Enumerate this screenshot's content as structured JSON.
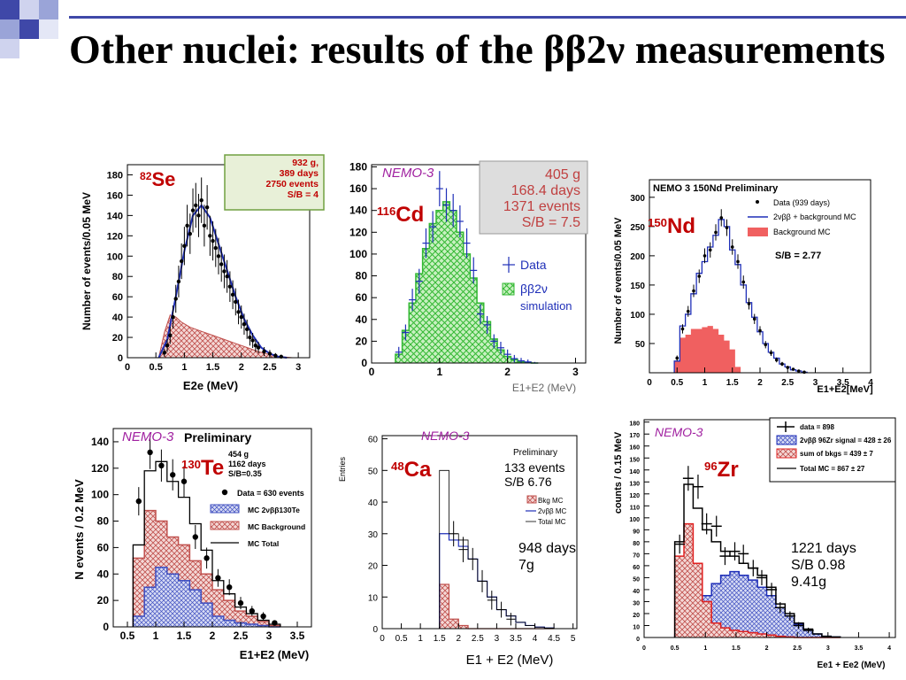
{
  "slide": {
    "title": "Other nuclei: results of the ββ2ν measurements"
  },
  "colors": {
    "accent_blue": "#3f48a8",
    "accent_light": "#9aa4d8",
    "data": "#000000",
    "signal": "#1f2fb8",
    "background_fill": "#c0504d",
    "nd_bkg": "#f06060",
    "green_mesh": "#33b833"
  },
  "chart_data": [
    {
      "id": "se82",
      "type": "line",
      "nucleus_sup": "82",
      "nucleus": "Se",
      "info": [
        "932 g,",
        "389 days",
        "2750 events",
        "S/B = 4"
      ],
      "xlabel": "E2e (MeV)",
      "ylabel": "Number of events/0.05 MeV",
      "xlim": [
        0,
        3.2
      ],
      "ylim": [
        0,
        190
      ],
      "xticks": [
        "0",
        "0.5",
        "1",
        "1.5",
        "2",
        "2.5",
        "3"
      ],
      "yticks": [
        "0",
        "20",
        "40",
        "60",
        "80",
        "100",
        "120",
        "140",
        "160",
        "180"
      ],
      "series": [
        {
          "name": "data",
          "x": [
            0.65,
            0.7,
            0.75,
            0.8,
            0.85,
            0.9,
            0.95,
            1.0,
            1.05,
            1.1,
            1.15,
            1.2,
            1.25,
            1.3,
            1.35,
            1.4,
            1.45,
            1.5,
            1.55,
            1.6,
            1.65,
            1.7,
            1.75,
            1.8,
            1.85,
            1.9,
            1.95,
            2.0,
            2.05,
            2.1,
            2.15,
            2.2,
            2.25,
            2.3,
            2.4,
            2.5,
            2.6,
            2.7
          ],
          "y": [
            5,
            12,
            22,
            40,
            58,
            75,
            95,
            110,
            130,
            122,
            145,
            150,
            140,
            155,
            130,
            148,
            120,
            115,
            108,
            100,
            92,
            85,
            80,
            70,
            62,
            55,
            45,
            40,
            33,
            28,
            20,
            17,
            12,
            10,
            6,
            4,
            2,
            1
          ]
        },
        {
          "name": "MC",
          "x": [
            0.55,
            0.7,
            0.85,
            1.0,
            1.15,
            1.3,
            1.45,
            1.6,
            1.75,
            1.9,
            2.05,
            2.2,
            2.35,
            2.5,
            2.65,
            2.8
          ],
          "y": [
            0,
            18,
            60,
            105,
            140,
            150,
            138,
            112,
            86,
            60,
            38,
            22,
            10,
            4,
            1,
            0
          ]
        },
        {
          "name": "background",
          "x": [
            0.55,
            0.65,
            0.75,
            0.85,
            0.95,
            1.1,
            1.3,
            1.5,
            1.7,
            1.9,
            2.1,
            2.3,
            2.5,
            2.7,
            2.9
          ],
          "y": [
            0,
            25,
            42,
            40,
            35,
            30,
            26,
            22,
            18,
            14,
            10,
            6,
            3,
            1,
            0
          ]
        }
      ]
    },
    {
      "id": "cd116",
      "type": "bar",
      "label": "NEMO-3",
      "nucleus_sup": "116",
      "nucleus": "Cd",
      "info": [
        "405 g",
        "168.4 days",
        "1371  events",
        "S/B = 7.5"
      ],
      "legend": [
        "Data",
        "ββ2ν",
        "simulation"
      ],
      "xlabel": "E1+E2 (MeV)",
      "xlim": [
        0,
        3.15
      ],
      "ylim": [
        0,
        182
      ],
      "xticks": [
        "0",
        "1",
        "2",
        "3"
      ],
      "yticks": [
        "0",
        "20",
        "40",
        "60",
        "80",
        "100",
        "120",
        "140",
        "160",
        "180"
      ],
      "bins_x": [
        0.4,
        0.5,
        0.6,
        0.7,
        0.8,
        0.9,
        1.0,
        1.1,
        1.2,
        1.3,
        1.4,
        1.5,
        1.6,
        1.7,
        1.8,
        1.9,
        2.0,
        2.1,
        2.2,
        2.3,
        2.4
      ],
      "simulation": [
        8,
        30,
        55,
        82,
        105,
        128,
        140,
        148,
        140,
        120,
        100,
        78,
        55,
        38,
        22,
        12,
        6,
        3,
        1,
        0.5,
        0
      ],
      "data": [
        10,
        28,
        58,
        75,
        110,
        125,
        160,
        145,
        140,
        130,
        110,
        85,
        45,
        35,
        20,
        14,
        8,
        4,
        2,
        1,
        0
      ]
    },
    {
      "id": "nd150",
      "type": "bar",
      "header": "NEMO 3 150Nd  Preliminary",
      "nucleus_sup": "150",
      "nucleus": "Nd",
      "legend": [
        "Data (939 days)",
        "2νββ + background MC",
        "Background MC"
      ],
      "sb": "S/B =  2.77",
      "xlabel": "E1+E2[MeV]",
      "ylabel": "Number of events/0.05 MeV",
      "xlim": [
        0,
        4
      ],
      "ylim": [
        0,
        330
      ],
      "xticks": [
        "0",
        "0.5",
        "1",
        "1.5",
        "2",
        "2.5",
        "3",
        "3.5",
        "4"
      ],
      "yticks": [
        "50",
        "100",
        "150",
        "200",
        "250",
        "300"
      ],
      "bins_x": [
        0.5,
        0.6,
        0.7,
        0.8,
        0.9,
        1.0,
        1.1,
        1.2,
        1.3,
        1.4,
        1.5,
        1.6,
        1.7,
        1.8,
        1.9,
        2.0,
        2.1,
        2.2,
        2.3,
        2.4,
        2.5,
        2.6,
        2.7,
        2.8
      ],
      "total": [
        20,
        80,
        100,
        135,
        170,
        190,
        215,
        235,
        262,
        250,
        210,
        185,
        150,
        120,
        95,
        70,
        50,
        35,
        25,
        15,
        10,
        5,
        3,
        1
      ],
      "background": [
        20,
        60,
        65,
        75,
        75,
        78,
        80,
        75,
        65,
        55,
        40,
        10,
        0,
        0,
        0,
        0,
        0,
        0,
        0,
        0,
        0,
        0,
        0,
        0
      ],
      "data": [
        25,
        75,
        105,
        140,
        165,
        200,
        210,
        240,
        265,
        248,
        215,
        190,
        155,
        118,
        92,
        72,
        48,
        34,
        22,
        15,
        9,
        6,
        3,
        1
      ]
    },
    {
      "id": "te130",
      "type": "bar",
      "label": "NEMO-3",
      "header": "Preliminary",
      "nucleus_sup": "130",
      "nucleus": "Te",
      "info": [
        "454 g",
        "1162 days",
        "S/B=0.35"
      ],
      "legend": [
        "Data = 630 events",
        "MC 2νββ130Te",
        "MC Background",
        "MC Total"
      ],
      "xlabel": "E1+E2 (MeV)",
      "ylabel": "N events / 0.2 MeV",
      "xlim": [
        0.25,
        3.75
      ],
      "ylim": [
        0,
        150
      ],
      "xticks": [
        "0.5",
        "1",
        "1.5",
        "2",
        "2.5",
        "3",
        "3.5"
      ],
      "yticks": [
        "0",
        "20",
        "40",
        "60",
        "80",
        "100",
        "120",
        "140"
      ],
      "bins_edges": [
        0.6,
        0.8,
        1.0,
        1.2,
        1.4,
        1.6,
        1.8,
        2.0,
        2.2,
        2.4,
        2.6,
        2.8,
        3.0,
        3.2
      ],
      "total": [
        62,
        118,
        125,
        110,
        98,
        78,
        58,
        35,
        25,
        15,
        10,
        5,
        2
      ],
      "background": [
        52,
        88,
        80,
        68,
        62,
        50,
        40,
        28,
        20,
        12,
        8,
        4,
        1
      ],
      "signal": [
        8,
        30,
        45,
        40,
        35,
        28,
        18,
        8,
        5,
        3,
        2,
        1,
        0
      ],
      "data_x": [
        0.7,
        0.9,
        1.1,
        1.3,
        1.5,
        1.7,
        1.9,
        2.1,
        2.3,
        2.5,
        2.7,
        2.9,
        3.1
      ],
      "data": [
        95,
        132,
        122,
        115,
        110,
        68,
        52,
        37,
        30,
        18,
        12,
        8,
        3
      ]
    },
    {
      "id": "ca48",
      "type": "bar",
      "label": "NEMO-3",
      "header": "Preliminary",
      "nucleus_sup": "48",
      "nucleus": "Ca",
      "info": [
        "133 events",
        "S/B 6.76"
      ],
      "info2": [
        "948 days",
        "7g"
      ],
      "legend": [
        "Bkg MC",
        "2νββ MC",
        "Total MC"
      ],
      "xlabel": "E1 + E2 (MeV)",
      "ylabel": "Entries",
      "xlim": [
        0,
        5.1
      ],
      "ylim": [
        0,
        61
      ],
      "xticks": [
        "0",
        "0.5",
        "1",
        "1.5",
        "2",
        "2.5",
        "3",
        "3.5",
        "4",
        "4.5",
        "5"
      ],
      "yticks": [
        "0",
        "10",
        "20",
        "30",
        "40",
        "50",
        "60"
      ],
      "bins_edges": [
        1.5,
        1.75,
        2.0,
        2.25,
        2.5,
        2.75,
        3.0,
        3.25,
        3.5,
        3.75,
        4.0,
        4.25,
        4.5
      ],
      "total": [
        50,
        30,
        28,
        22,
        15,
        10,
        6,
        4,
        2,
        1,
        0.5,
        0.2
      ],
      "signal": [
        30,
        28,
        26,
        22,
        15,
        10,
        6,
        4,
        2,
        1,
        0.5,
        0.2
      ],
      "background": [
        14,
        3,
        1,
        0,
        0,
        0,
        0,
        0,
        0,
        0,
        0,
        0
      ]
    },
    {
      "id": "zr96",
      "type": "bar",
      "label": "NEMO-3",
      "nucleus_sup": "96",
      "nucleus": "Zr",
      "legend": [
        "data = 898",
        "2νββ 96Zr signal = 428 ± 26",
        "sum of bkgs = 439 ± 7",
        "Total MC = 867 ± 27"
      ],
      "info": [
        "1221 days",
        "S/B 0.98",
        "9.41g"
      ],
      "xlabel": "Ee1 + Ee2 (MeV)",
      "ylabel": "counts / 0.15 MeV",
      "xlim": [
        0,
        4.1
      ],
      "ylim": [
        0,
        182
      ],
      "xticks": [
        "0",
        "0.5",
        "1",
        "1.5",
        "2",
        "2.5",
        "3",
        "3.5",
        "4"
      ],
      "yticks": [
        "0",
        "10",
        "20",
        "30",
        "40",
        "50",
        "60",
        "70",
        "80",
        "90",
        "100",
        "110",
        "120",
        "130",
        "140",
        "150",
        "160",
        "170",
        "180"
      ],
      "bins_edges": [
        0.5,
        0.65,
        0.8,
        0.95,
        1.1,
        1.25,
        1.4,
        1.55,
        1.7,
        1.85,
        2.0,
        2.15,
        2.3,
        2.45,
        2.6,
        2.75,
        2.9,
        3.05,
        3.2
      ],
      "total": [
        80,
        128,
        108,
        90,
        80,
        72,
        68,
        62,
        58,
        52,
        42,
        28,
        20,
        12,
        7,
        3,
        1,
        0.5
      ],
      "background": [
        68,
        95,
        62,
        30,
        12,
        8,
        6,
        5,
        4,
        3,
        2,
        1,
        0.5,
        0,
        0,
        0,
        0,
        0
      ],
      "signal": [
        2,
        10,
        22,
        35,
        45,
        52,
        55,
        52,
        48,
        42,
        35,
        25,
        18,
        11,
        6,
        3,
        1,
        0.5
      ],
      "data_x": [
        0.58,
        0.72,
        0.88,
        1.02,
        1.18,
        1.32,
        1.48,
        1.62,
        1.78,
        1.92,
        2.08,
        2.22,
        2.38,
        2.52,
        2.68
      ],
      "data": [
        78,
        133,
        126,
        95,
        93,
        68,
        72,
        70,
        58,
        50,
        40,
        25,
        18,
        10,
        6
      ]
    }
  ]
}
